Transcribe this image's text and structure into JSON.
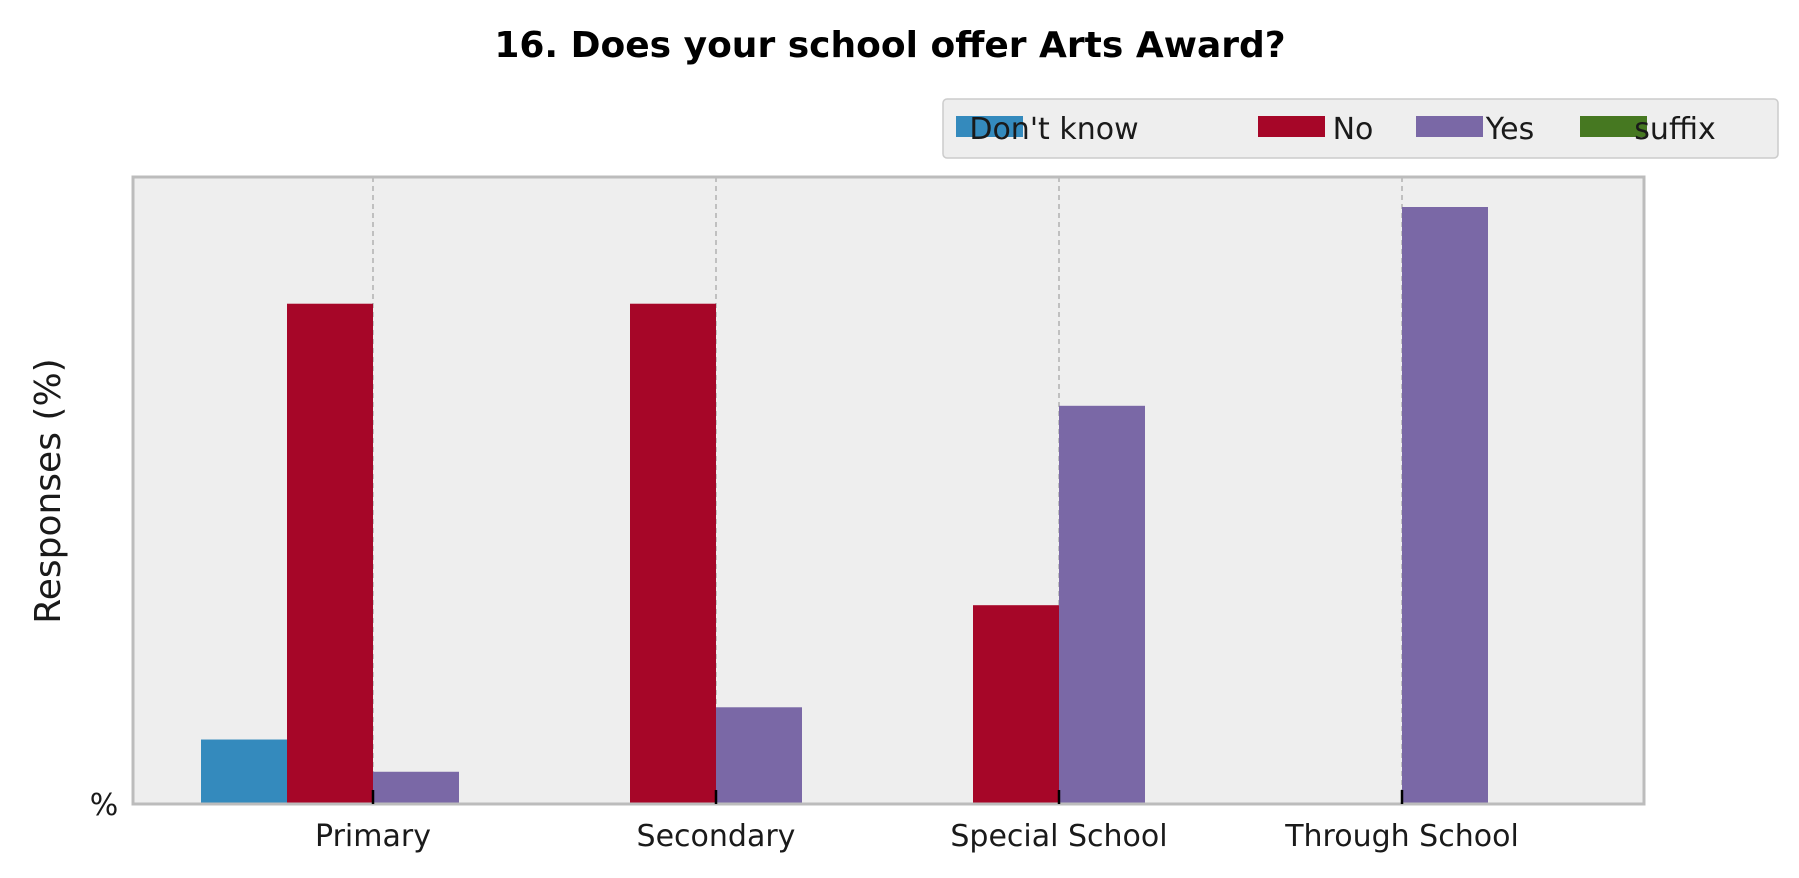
{
  "chart_data": {
    "type": "bar",
    "title": "16. Does your school offer Arts Award?",
    "xlabel": "",
    "ylabel": "Responses (%)",
    "ytick_label": "%",
    "categories": [
      "Primary",
      "Secondary",
      "Special School",
      "Through School"
    ],
    "series": [
      {
        "name": "Don't know",
        "color": "#348abd",
        "values": [
          10.8,
          0,
          0,
          0
        ]
      },
      {
        "name": "No",
        "color": "#a60628",
        "values": [
          83.8,
          83.8,
          33.3,
          0
        ]
      },
      {
        "name": "Yes",
        "color": "#7a68a6",
        "values": [
          5.4,
          16.2,
          66.7,
          100
        ]
      },
      {
        "name": "suffix",
        "color": "#467821",
        "values": [
          0,
          0,
          0,
          0
        ]
      }
    ],
    "ylim": [
      0,
      105
    ],
    "grid": "vertical dashed",
    "legend_position": "top-right, above plot",
    "plot_background": "#eeeeee",
    "frame_color": "#bcbcbc"
  }
}
